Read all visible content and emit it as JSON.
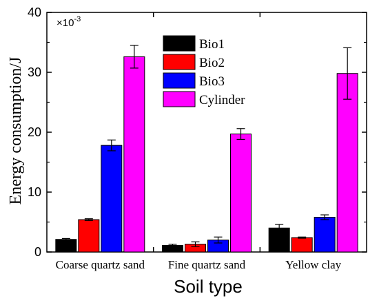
{
  "chart_data": {
    "type": "bar",
    "categories": [
      "Coarse quartz sand",
      "Fine quartz sand",
      "Yellow clay"
    ],
    "series": [
      {
        "name": "Bio1",
        "color": "#000000",
        "values": [
          2.1,
          1.1,
          4.0
        ],
        "errors": [
          0.15,
          0.2,
          0.6
        ]
      },
      {
        "name": "Bio2",
        "color": "#ff0000",
        "values": [
          5.4,
          1.3,
          2.4
        ],
        "errors": [
          0.15,
          0.4,
          0.1
        ]
      },
      {
        "name": "Bio3",
        "color": "#0000ff",
        "values": [
          17.8,
          2.0,
          5.8
        ],
        "errors": [
          0.9,
          0.5,
          0.4
        ]
      },
      {
        "name": "Cylinder",
        "color": "#ff00ff",
        "values": [
          32.6,
          19.7,
          29.8
        ],
        "errors": [
          1.9,
          0.9,
          4.3
        ]
      }
    ],
    "title": "",
    "xlabel": "Soil type",
    "ylabel": "Energy consumption/J",
    "multiplier_label": "×10",
    "multiplier_exponent": "-3",
    "ylim": [
      0,
      40
    ],
    "yticks": [
      0,
      10,
      20,
      30,
      40
    ],
    "legend_position": "top-center",
    "grid": false
  }
}
